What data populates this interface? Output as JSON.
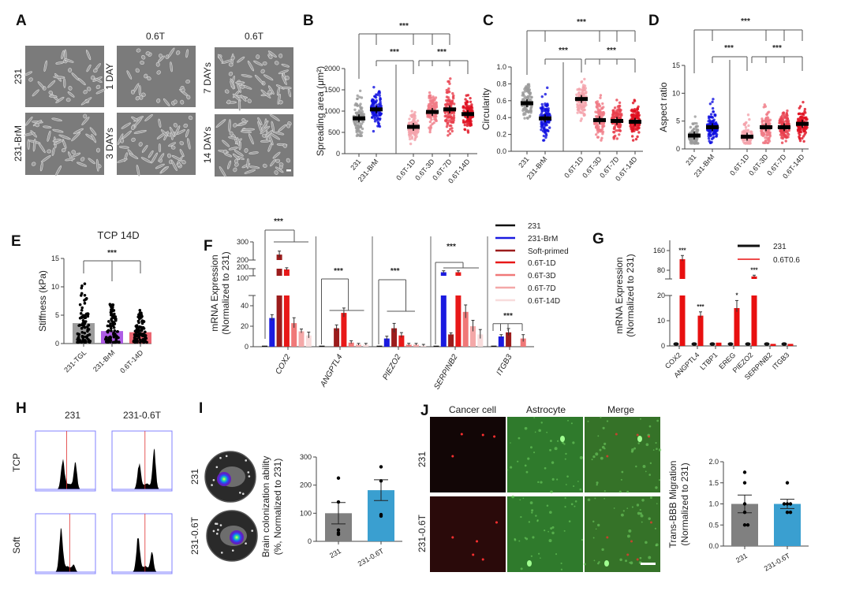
{
  "figure": {
    "A": {
      "label": "A",
      "col_headers": [
        "0.6T",
        "0.6T"
      ],
      "row_labels": [
        "231",
        "231-BrM"
      ],
      "time_labels": [
        "1 DAY",
        "3 DAYs",
        "7 DAYs",
        "14 DAYs"
      ]
    },
    "H": {
      "label": "H",
      "col_headers": [
        "231",
        "231-0.6T"
      ],
      "row_labels": [
        "TCP",
        "Soft"
      ]
    },
    "I": {
      "label": "I",
      "row_labels": [
        "231",
        "231-0.6T"
      ]
    },
    "J": {
      "label": "J",
      "col_headers": [
        "Cancer cell",
        "Astrocyte",
        "Merge"
      ],
      "row_labels": [
        "231",
        "231-0.6T"
      ]
    }
  },
  "chart_data": [
    {
      "panel": "B",
      "type": "scatter",
      "ylabel": "Spreading area (μm²)",
      "ylim": [
        0,
        2000
      ],
      "yticks": [
        0,
        500,
        1000,
        1500,
        2000
      ],
      "ytick_labels": [
        "0",
        "500",
        "1000",
        "1500",
        "2000"
      ],
      "categories": [
        "231",
        "231-BrM",
        "0.6T-1D",
        "0.6T-3D",
        "0.6T-7D",
        "0.6T-14D"
      ],
      "means": [
        830,
        1040,
        630,
        980,
        1040,
        930
      ],
      "ranges": [
        [
          420,
          1640
        ],
        [
          500,
          1850
        ],
        [
          230,
          1230
        ],
        [
          480,
          1680
        ],
        [
          430,
          1870
        ],
        [
          500,
          1650
        ]
      ],
      "colors": [
        "#9a9a9a",
        "#1010e0",
        "#f4a3ab",
        "#f07a86",
        "#e8404e",
        "#e01020"
      ],
      "significance": [
        "***",
        "***",
        "***"
      ]
    },
    {
      "panel": "C",
      "type": "scatter",
      "ylabel": "Circularity",
      "ylim": [
        0,
        1
      ],
      "yticks": [
        0,
        0.2,
        0.4,
        0.6,
        0.8,
        1.0
      ],
      "ytick_labels": [
        "0.0",
        "0.2",
        "0.4",
        "0.6",
        "0.8",
        "1.0"
      ],
      "categories": [
        "231",
        "231-BrM",
        "0.6T-1D",
        "0.6T-3D",
        "0.6T-7D",
        "0.6T-14D"
      ],
      "means": [
        0.57,
        0.39,
        0.62,
        0.37,
        0.36,
        0.35
      ],
      "ranges": [
        [
          0.25,
          0.9
        ],
        [
          0.08,
          0.8
        ],
        [
          0.25,
          0.93
        ],
        [
          0.1,
          0.78
        ],
        [
          0.15,
          0.7
        ],
        [
          0.13,
          0.68
        ]
      ],
      "colors": [
        "#9a9a9a",
        "#1010e0",
        "#f4a3ab",
        "#f07a86",
        "#e8404e",
        "#e01020"
      ],
      "significance": [
        "***",
        "***",
        "***"
      ]
    },
    {
      "panel": "D",
      "type": "scatter",
      "ylabel": "Aspect ratio",
      "ylim": [
        0,
        15
      ],
      "yticks": [
        0,
        5,
        10,
        15
      ],
      "ytick_labels": [
        "0",
        "5",
        "10",
        "15"
      ],
      "categories": [
        "231",
        "231-BrM",
        "0.6T-1D",
        "0.6T-3D",
        "0.6T-7D",
        "0.6T-14D"
      ],
      "means": [
        2.4,
        3.9,
        2.2,
        3.9,
        3.9,
        4.5
      ],
      "ranges": [
        [
          1,
          7.3
        ],
        [
          1.1,
          9.5
        ],
        [
          1,
          7.4
        ],
        [
          1.1,
          9.8
        ],
        [
          1.1,
          9.6
        ],
        [
          1.1,
          8.6
        ]
      ],
      "colors": [
        "#9a9a9a",
        "#1010e0",
        "#f4a3ab",
        "#f07a86",
        "#e8404e",
        "#e01020"
      ],
      "significance": [
        "***",
        "***",
        "***"
      ]
    },
    {
      "panel": "E",
      "type": "bar",
      "title": "TCP 14D",
      "ylabel": "Stiffness (kPa)",
      "ylim": [
        0,
        15
      ],
      "yticks": [
        0,
        5,
        10,
        15
      ],
      "ytick_labels": [
        "0",
        "5",
        "10",
        "15"
      ],
      "categories": [
        "231-TGL",
        "231-BrM",
        "0.6T-14D"
      ],
      "values": [
        3.6,
        2.2,
        2.0
      ],
      "ranges": [
        [
          0.2,
          11
        ],
        [
          0.2,
          7
        ],
        [
          0.2,
          5.9
        ]
      ],
      "colors": [
        "#8c8c8c",
        "#a040e0",
        "#e84a58"
      ],
      "significance": [
        "***"
      ]
    },
    {
      "panel": "F",
      "type": "bar",
      "ylabel": [
        "mRNA Expression",
        "(Normalized to 231)"
      ],
      "categories": [
        "COX2",
        "ANGPTL4",
        "PIEZO2",
        "SERPINB2",
        "ITGB3"
      ],
      "yticks_lower": [
        0,
        20,
        40
      ],
      "ytick_labels_lower": [
        "0",
        "20",
        "40"
      ],
      "yticks_mid": [
        100,
        200
      ],
      "ytick_labels_mid": [
        "100",
        "200"
      ],
      "yticks_top": [
        200,
        300
      ],
      "ytick_labels_top": [
        "200",
        "300"
      ],
      "series": [
        {
          "name": "231",
          "color": "#111111",
          "values": [
            1,
            1,
            1,
            1,
            1
          ],
          "errors": [
            0,
            0,
            0,
            0,
            0
          ]
        },
        {
          "name": "231-BrM",
          "color": "#1a1ae0",
          "values": [
            28,
            0,
            8,
            150,
            10
          ],
          "errors": [
            2.5,
            0,
            1.5,
            10,
            1
          ]
        },
        {
          "name": "Soft-primed",
          "color": "#9b1c1c",
          "values": [
            230,
            18,
            18,
            12,
            14
          ],
          "errors": [
            15,
            2.5,
            4,
            0.8,
            3
          ]
        },
        {
          "name": "0.6T-1D",
          "color": "#e81818",
          "values": [
            190,
            33,
            11,
            150,
            0
          ],
          "errors": [
            12,
            4,
            2,
            10,
            0
          ]
        },
        {
          "name": "0.6T-3D",
          "color": "#f07878",
          "values": [
            23,
            4,
            2,
            34,
            8
          ],
          "errors": [
            4.5,
            1,
            0.6,
            6,
            3
          ]
        },
        {
          "name": "0.6T-7D",
          "color": "#f4a8a8",
          "values": [
            15,
            2,
            2,
            20,
            0
          ],
          "errors": [
            1.5,
            0.5,
            0.5,
            5,
            0
          ]
        },
        {
          "name": "0.6T-14D",
          "color": "#f8dcdc",
          "values": [
            11,
            2,
            1,
            12,
            0
          ],
          "errors": [
            2.5,
            0.5,
            0.5,
            4,
            0
          ]
        }
      ],
      "significance": [
        "***",
        "***",
        "***",
        "***",
        "***"
      ]
    },
    {
      "panel": "G",
      "type": "bar",
      "ylabel": [
        "mRNA Expression",
        "(Normalized to 231)"
      ],
      "categories": [
        "COX2",
        "ANGPTL4",
        "LTBP1",
        "EREG",
        "PIEZO2",
        "SERPINB2",
        "ITGB3"
      ],
      "yticks_lower": [
        0,
        10,
        20
      ],
      "ytick_labels_lower": [
        "0",
        "10",
        "20"
      ],
      "yticks_upper": [
        80,
        160
      ],
      "ytick_labels_upper": [
        "80",
        "160"
      ],
      "series": [
        {
          "name": "231",
          "color": "#111111",
          "values": [
            0.6,
            0.6,
            0.6,
            0.6,
            0.6,
            0.6,
            0.6
          ],
          "errors": [
            0,
            0,
            0,
            0,
            0,
            0,
            0
          ]
        },
        {
          "name": "0.6T0.6",
          "color": "#e81010",
          "values": [
            125,
            12,
            1.3,
            15,
            55,
            0.8,
            0.8
          ],
          "errors": [
            15,
            1.5,
            0.3,
            3,
            5,
            0.2,
            0.2
          ]
        }
      ],
      "significance": [
        "***",
        "***",
        "",
        "*",
        "***",
        "",
        ""
      ]
    },
    {
      "panel": "I",
      "type": "bar",
      "ylabel": [
        "Brain colonization ability",
        "(%, Normalized to 231)"
      ],
      "ylim": [
        0,
        300
      ],
      "yticks": [
        0,
        100,
        200,
        300
      ],
      "ytick_labels": [
        "0",
        "100",
        "200",
        "300"
      ],
      "categories": [
        "231",
        "231-0.6T"
      ],
      "values": [
        100,
        182
      ],
      "errors": [
        38,
        37
      ],
      "points": [
        [
          225,
          140,
          40,
          30,
          25
        ],
        [
          265,
          215,
          95,
          90
        ]
      ],
      "colors": [
        "#808080",
        "#3a9fd0"
      ]
    },
    {
      "panel": "J",
      "type": "bar",
      "ylabel": [
        "Trans-BBB Migration",
        "(Normalized to 231)"
      ],
      "ylim": [
        0,
        2
      ],
      "yticks": [
        0,
        0.5,
        1,
        1.5,
        2
      ],
      "ytick_labels": [
        "0.0",
        "0.5",
        "1.0",
        "1.5",
        "2.0"
      ],
      "categories": [
        "231",
        "231-0.6T"
      ],
      "values": [
        1.0,
        1.0
      ],
      "errors": [
        0.21,
        0.11
      ],
      "points": [
        [
          1.75,
          1.5,
          1.0,
          0.8,
          0.5,
          0.5
        ],
        [
          1.5,
          1.0,
          1.0,
          1.0,
          0.8,
          0.8
        ]
      ],
      "colors": [
        "#808080",
        "#3a9fd0"
      ]
    }
  ]
}
